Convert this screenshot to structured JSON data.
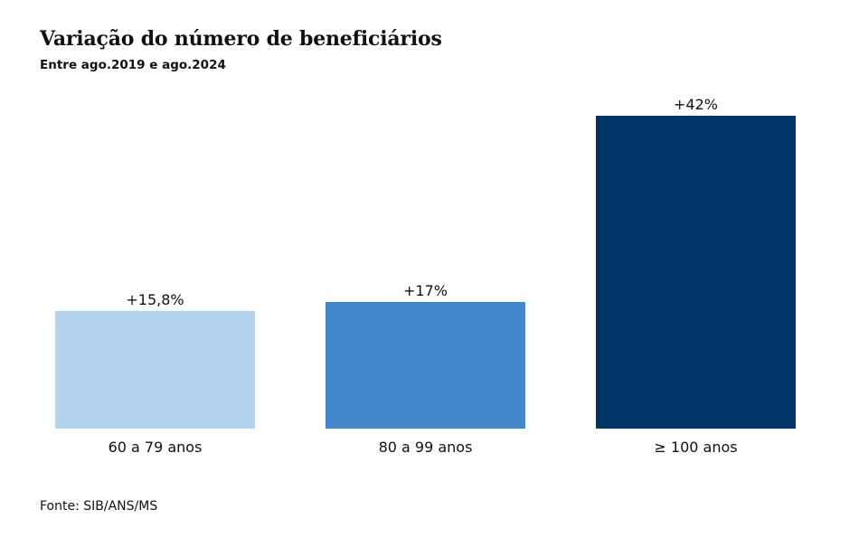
{
  "chart_data": {
    "type": "bar",
    "title": "Variação do número de beneficiários",
    "subtitle": "Entre ago.2019 e ago.2024",
    "categories": [
      "60 a 79 anos",
      "80 a 99 anos",
      "≥ 100 anos"
    ],
    "values": [
      15.8,
      17,
      42
    ],
    "data_labels": [
      "+15,8%",
      "+17%",
      "+42%"
    ],
    "colors": [
      "#b4d3ee",
      "#4287c7",
      "#003366"
    ],
    "unit": "%",
    "ylim": [
      0,
      42
    ],
    "grid": false,
    "legend": "none",
    "xlabel": "",
    "ylabel": ""
  },
  "source": "Fonte: SIB/ANS/MS"
}
